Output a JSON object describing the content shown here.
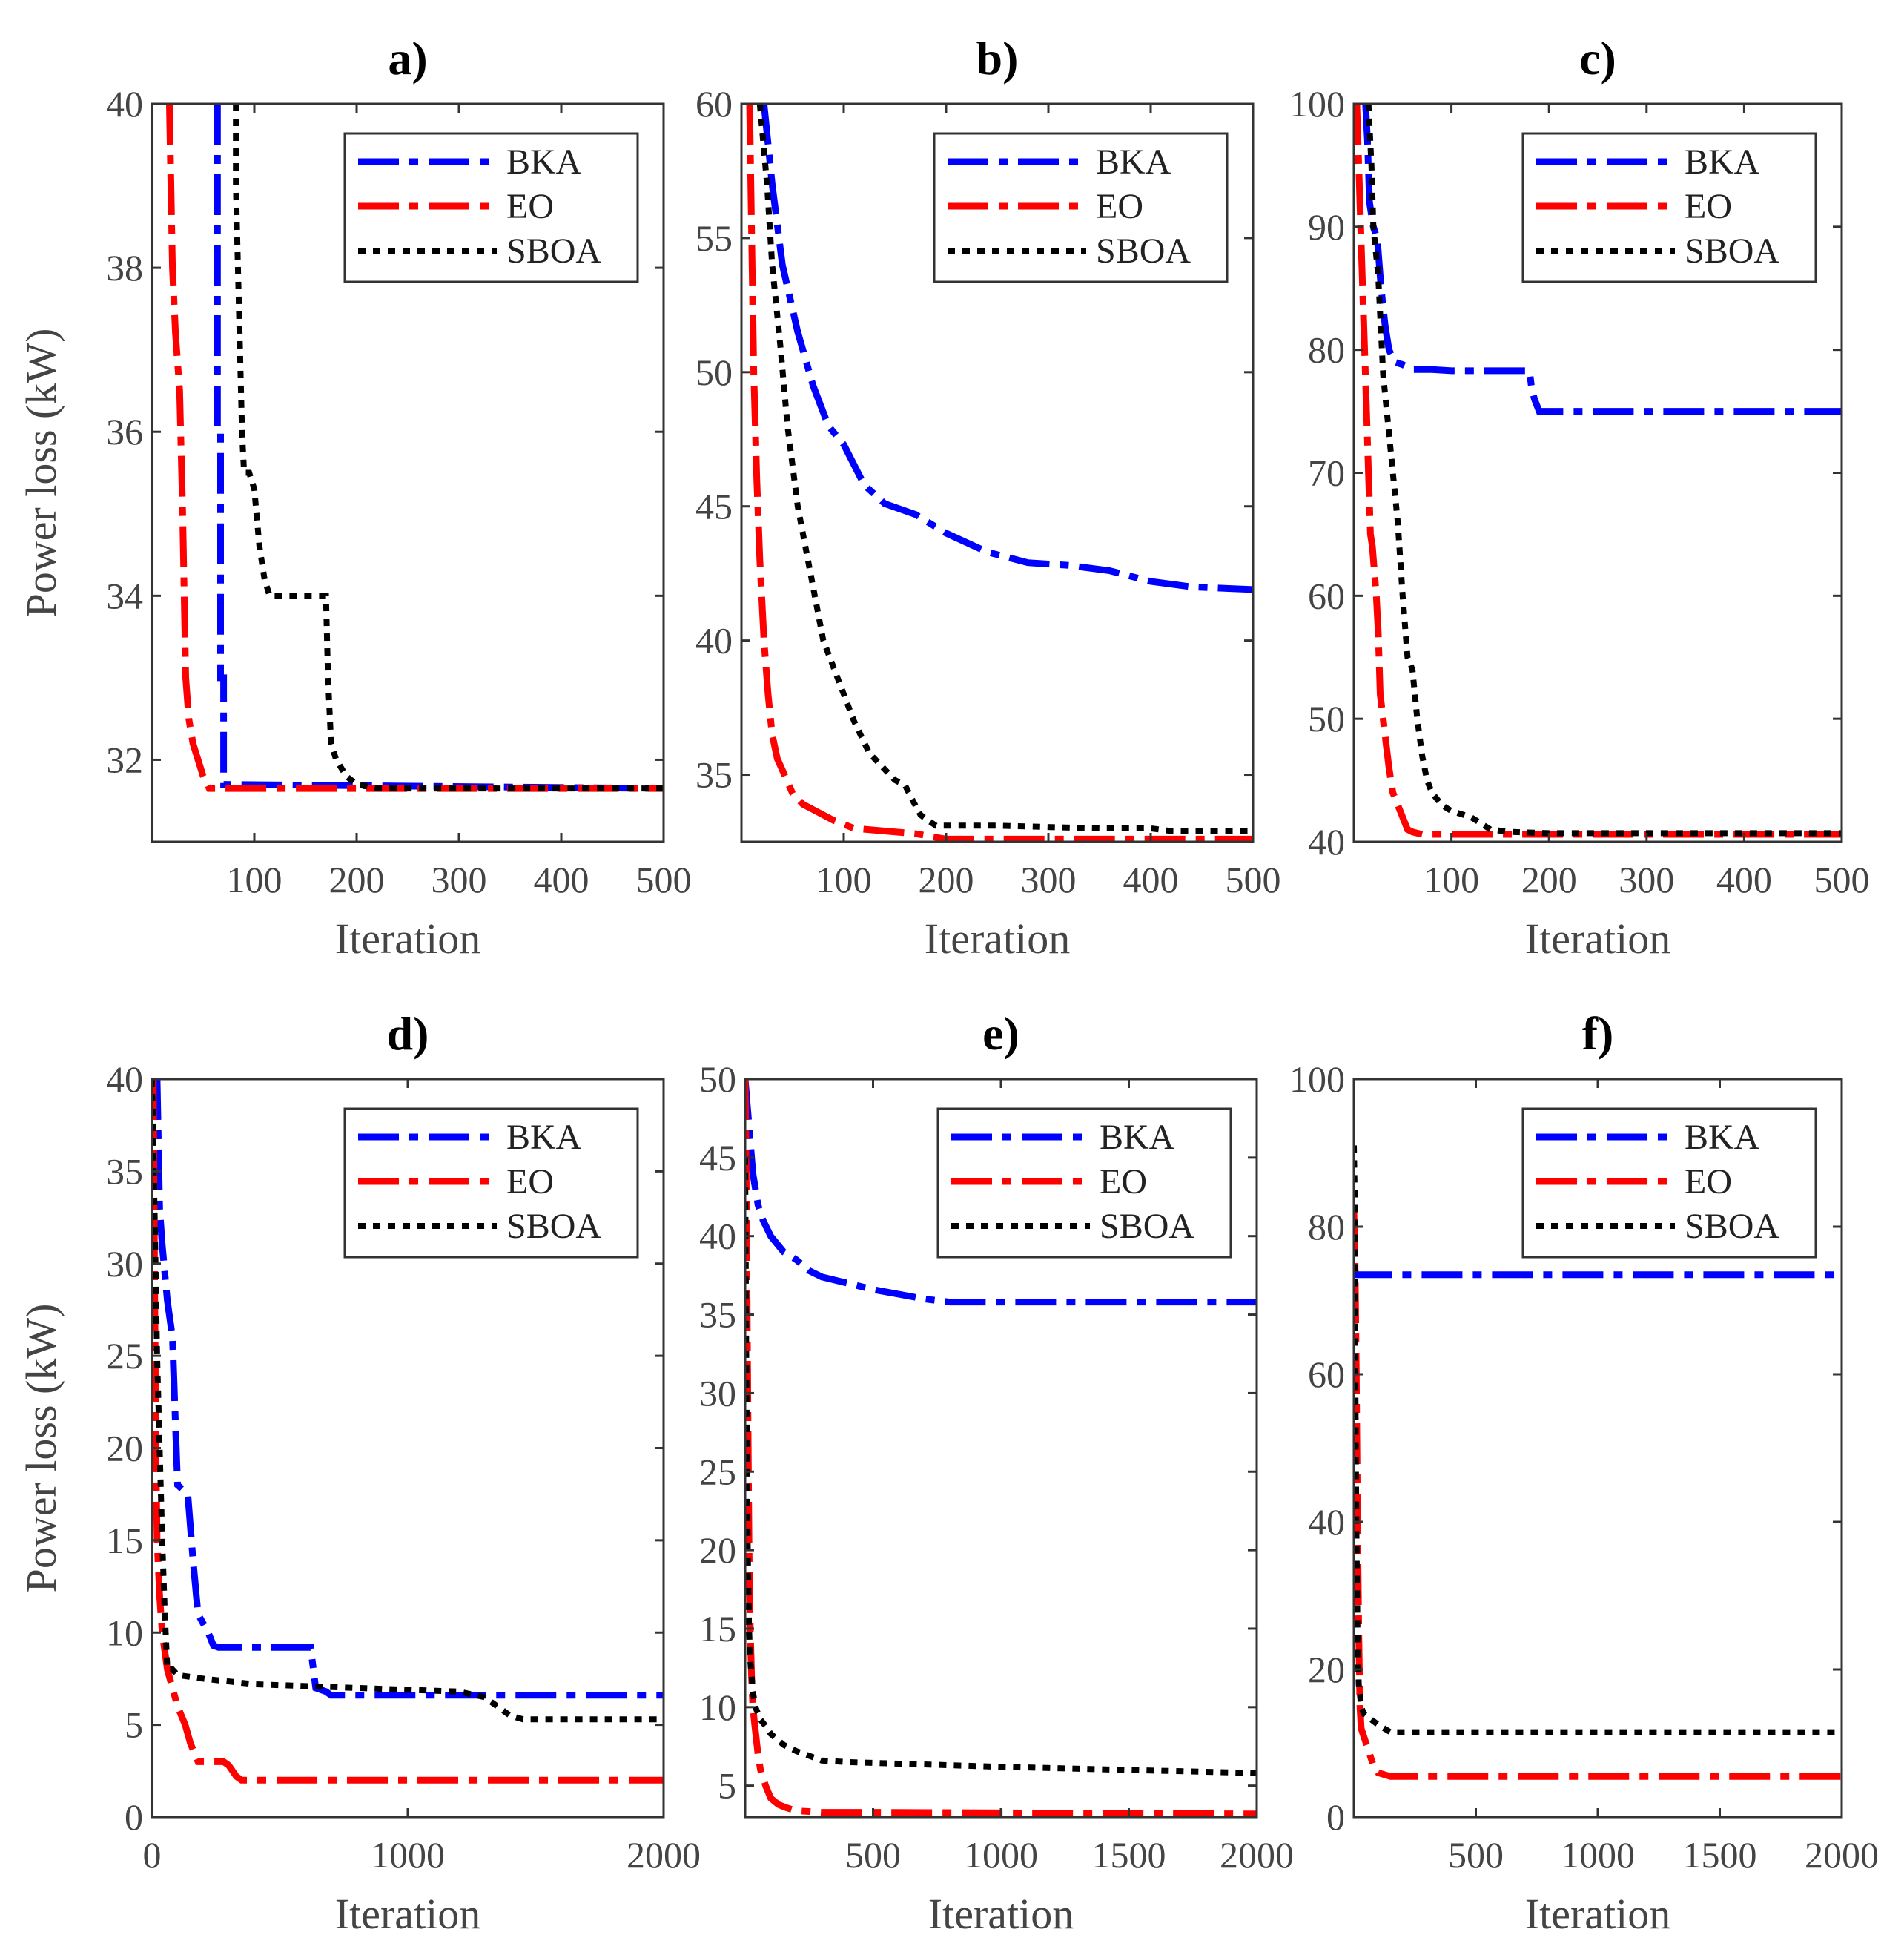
{
  "chart_data": [
    {
      "title": "a)",
      "type": "line",
      "xlabel": "Iteration",
      "ylabel": "Power loss (kW)",
      "xlim": [
        0,
        500
      ],
      "ylim": [
        31,
        40
      ],
      "xticks": [
        100,
        200,
        300,
        400,
        500
      ],
      "xtick_labels": [
        "100",
        "200",
        "300",
        "400",
        "500"
      ],
      "yticks": [
        32,
        34,
        36,
        38,
        40
      ],
      "ytick_labels": [
        "32",
        "34",
        "36",
        "38",
        "40"
      ],
      "legend": "top-right",
      "series": [
        {
          "name": "BKA",
          "color": "#0000ff",
          "style": "dashdot",
          "x": [
            64,
            64,
            67,
            67,
            70,
            70,
            500
          ],
          "y": [
            40,
            36,
            36,
            33,
            33,
            31.7,
            31.65
          ]
        },
        {
          "name": "EO",
          "color": "#ff0000",
          "style": "dashdot",
          "x": [
            17,
            20,
            23,
            27,
            30,
            33,
            36,
            40,
            45,
            50,
            56,
            500
          ],
          "y": [
            40,
            38,
            37.2,
            36.5,
            35,
            33,
            32.5,
            32.2,
            32,
            31.8,
            31.65,
            31.65
          ]
        },
        {
          "name": "SBOA",
          "color": "#000000",
          "style": "dotted",
          "x": [
            82,
            82,
            88,
            90,
            95,
            100,
            105,
            110,
            115,
            170,
            172,
            175,
            180,
            190,
            200,
            220,
            500
          ],
          "y": [
            40,
            39,
            36,
            35.5,
            35.5,
            35.3,
            34.6,
            34.2,
            34,
            34,
            33,
            32.2,
            32,
            31.8,
            31.7,
            31.65,
            31.65
          ]
        }
      ]
    },
    {
      "title": "b)",
      "type": "line",
      "xlabel": "Iteration",
      "ylabel": "",
      "xlim": [
        0,
        500
      ],
      "ylim": [
        32.5,
        60
      ],
      "xticks": [
        100,
        200,
        300,
        400,
        500
      ],
      "xtick_labels": [
        "100",
        "200",
        "300",
        "400",
        "500"
      ],
      "yticks": [
        35,
        40,
        45,
        50,
        55,
        60
      ],
      "ytick_labels": [
        "35",
        "40",
        "45",
        "50",
        "55",
        "60"
      ],
      "legend": "top-right",
      "series": [
        {
          "name": "BKA",
          "color": "#0000ff",
          "style": "dashdot",
          "x": [
            22,
            30,
            40,
            55,
            70,
            85,
            100,
            120,
            140,
            170,
            200,
            240,
            280,
            320,
            360,
            400,
            440,
            500
          ],
          "y": [
            60,
            57,
            54,
            51.5,
            49.5,
            48,
            47.3,
            45.8,
            45.1,
            44.7,
            44,
            43.3,
            42.9,
            42.8,
            42.6,
            42.2,
            42,
            41.9
          ]
        },
        {
          "name": "EO",
          "color": "#ff0000",
          "style": "dashdot",
          "x": [
            8,
            10,
            12,
            15,
            18,
            22,
            26,
            30,
            35,
            42,
            50,
            60,
            75,
            90,
            110,
            140,
            170,
            200,
            250,
            500
          ],
          "y": [
            60,
            55,
            50,
            46,
            43,
            40,
            38,
            36.5,
            35.6,
            35,
            34.3,
            33.9,
            33.6,
            33.3,
            33,
            32.9,
            32.8,
            32.6,
            32.6,
            32.6
          ]
        },
        {
          "name": "SBOA",
          "color": "#000000",
          "style": "dotted",
          "x": [
            18,
            25,
            30,
            38,
            45,
            55,
            65,
            80,
            95,
            110,
            125,
            140,
            150,
            160,
            168,
            175,
            190,
            250,
            350,
            400,
            420,
            500
          ],
          "y": [
            60,
            57,
            54,
            51,
            48,
            45,
            43,
            40,
            38.5,
            37,
            35.8,
            35.2,
            34.8,
            34.6,
            34,
            33.5,
            33.1,
            33.1,
            33,
            33,
            32.9,
            32.9
          ]
        }
      ]
    },
    {
      "title": "c)",
      "type": "line",
      "xlabel": "Iteration",
      "ylabel": "",
      "xlim": [
        0,
        500
      ],
      "ylim": [
        40,
        100
      ],
      "xticks": [
        100,
        200,
        300,
        400,
        500
      ],
      "xtick_labels": [
        "100",
        "200",
        "300",
        "400",
        "500"
      ],
      "yticks": [
        40,
        50,
        60,
        70,
        80,
        90,
        100
      ],
      "ytick_labels": [
        "40",
        "50",
        "60",
        "70",
        "80",
        "90",
        "100"
      ],
      "legend": "top-right",
      "series": [
        {
          "name": "BKA",
          "color": "#0000ff",
          "style": "dashdot",
          "x": [
            12,
            14,
            16,
            20,
            24,
            28,
            32,
            36,
            42,
            50,
            60,
            80,
            100,
            180,
            182,
            185,
            190,
            500
          ],
          "y": [
            100,
            97,
            92,
            90,
            89,
            85,
            82,
            80,
            79,
            78.8,
            78.4,
            78.4,
            78.3,
            78.3,
            77,
            76,
            75,
            75
          ]
        },
        {
          "name": "EO",
          "color": "#ff0000",
          "style": "dashdot",
          "x": [
            3,
            5,
            7,
            9,
            11,
            13,
            15,
            17,
            19,
            21,
            23,
            25,
            27,
            30,
            33,
            36,
            40,
            45,
            50,
            55,
            60,
            70,
            80,
            500
          ],
          "y": [
            100,
            95,
            90,
            85,
            80,
            75,
            70,
            65,
            64,
            62,
            60,
            57,
            52,
            50,
            48,
            46,
            44,
            43,
            42,
            41,
            40.8,
            40.6,
            40.6,
            40.6
          ]
        },
        {
          "name": "SBOA",
          "color": "#000000",
          "style": "dotted",
          "x": [
            15,
            18,
            20,
            25,
            30,
            35,
            40,
            45,
            50,
            55,
            60,
            65,
            70,
            75,
            80,
            90,
            100,
            120,
            140,
            160,
            200,
            500
          ],
          "y": [
            100,
            95,
            90,
            86,
            78,
            74,
            70,
            66,
            60,
            55,
            54,
            50,
            47,
            45,
            44,
            43,
            42.5,
            42,
            41,
            40.8,
            40.7,
            40.7
          ]
        }
      ]
    },
    {
      "title": "d)",
      "type": "line",
      "xlabel": "Iteration",
      "ylabel": "Power loss (kW)",
      "xlim": [
        0,
        2000
      ],
      "ylim": [
        0,
        40
      ],
      "xticks": [
        0,
        1000,
        2000
      ],
      "xtick_labels": [
        "0",
        "1000",
        "2000"
      ],
      "yticks": [
        0,
        5,
        10,
        15,
        20,
        25,
        30,
        35,
        40
      ],
      "ytick_labels": [
        "0",
        "5",
        "10",
        "15",
        "20",
        "25",
        "30",
        "35",
        "40"
      ],
      "legend": "top-right",
      "series": [
        {
          "name": "BKA",
          "color": "#0000ff",
          "style": "dashdot",
          "x": [
            20,
            30,
            40,
            60,
            80,
            100,
            140,
            160,
            180,
            220,
            240,
            260,
            300,
            620,
            640,
            680,
            700,
            1200,
            2000
          ],
          "y": [
            40,
            33,
            31,
            28,
            26,
            18,
            17.5,
            14,
            11,
            10,
            9.3,
            9.2,
            9.2,
            9.2,
            7,
            6.8,
            6.6,
            6.6,
            6.6
          ]
        },
        {
          "name": "EO",
          "color": "#ff0000",
          "style": "dashdot",
          "x": [
            5,
            10,
            15,
            20,
            30,
            40,
            60,
            80,
            100,
            130,
            150,
            180,
            220,
            280,
            300,
            330,
            350,
            2000
          ],
          "y": [
            40,
            30,
            20,
            15,
            12,
            10,
            8,
            7,
            6,
            5,
            4,
            3,
            3,
            3,
            2.8,
            2.2,
            2,
            2
          ]
        },
        {
          "name": "SBOA",
          "color": "#000000",
          "style": "dotted",
          "x": [
            0,
            10,
            20,
            30,
            40,
            50,
            60,
            80,
            100,
            200,
            400,
            600,
            800,
            1000,
            1200,
            1300,
            1400,
            1450,
            2000
          ],
          "y": [
            40,
            33,
            25,
            20,
            15,
            11,
            8,
            8,
            7.7,
            7.5,
            7.2,
            7.1,
            7,
            6.9,
            6.8,
            6.5,
            5.5,
            5.3,
            5.3
          ]
        }
      ]
    },
    {
      "title": "e)",
      "type": "line",
      "xlabel": "Iteration",
      "ylabel": "",
      "xlim": [
        0,
        2000
      ],
      "ylim": [
        3,
        50
      ],
      "xticks": [
        500,
        1000,
        1500,
        2000
      ],
      "xtick_labels": [
        "500",
        "1000",
        "1500",
        "2000"
      ],
      "yticks": [
        5,
        10,
        15,
        20,
        25,
        30,
        35,
        40,
        45,
        50
      ],
      "ytick_labels": [
        "5",
        "10",
        "15",
        "20",
        "25",
        "30",
        "35",
        "40",
        "45",
        "50"
      ],
      "legend": "top-right",
      "series": [
        {
          "name": "BKA",
          "color": "#0000ff",
          "style": "dashdot",
          "x": [
            0,
            15,
            30,
            50,
            70,
            100,
            150,
            200,
            250,
            300,
            400,
            500,
            600,
            700,
            800,
            1000,
            2000
          ],
          "y": [
            50,
            47,
            44,
            42,
            41,
            40,
            39,
            38.5,
            37.8,
            37.4,
            37,
            36.6,
            36.3,
            36,
            35.8,
            35.8,
            35.8
          ]
        },
        {
          "name": "EO",
          "color": "#ff0000",
          "style": "dashdot",
          "x": [
            0,
            5,
            10,
            15,
            20,
            25,
            30,
            40,
            50,
            60,
            80,
            100,
            130,
            160,
            200,
            300,
            500,
            2000
          ],
          "y": [
            50,
            42,
            30,
            20,
            15,
            12,
            10,
            8.5,
            7,
            6,
            5,
            4.2,
            3.8,
            3.6,
            3.4,
            3.3,
            3.3,
            3.2
          ]
        },
        {
          "name": "SBOA",
          "color": "#000000",
          "style": "dotted",
          "x": [
            0,
            5,
            10,
            15,
            20,
            30,
            40,
            50,
            60,
            80,
            100,
            150,
            200,
            250,
            300,
            400,
            600,
            800,
            1000,
            1500,
            2000
          ],
          "y": [
            45,
            30,
            20,
            15,
            13,
            11,
            10,
            9.6,
            9.2,
            8.8,
            8.3,
            7.6,
            7.2,
            6.9,
            6.6,
            6.5,
            6.4,
            6.3,
            6.2,
            6,
            5.8
          ]
        }
      ]
    },
    {
      "title": "f)",
      "type": "line",
      "xlabel": "Iteration",
      "ylabel": "",
      "xlim": [
        0,
        2000
      ],
      "ylim": [
        0,
        100
      ],
      "xticks": [
        500,
        1000,
        1500,
        2000
      ],
      "xtick_labels": [
        "500",
        "1000",
        "1500",
        "2000"
      ],
      "yticks": [
        0,
        20,
        40,
        60,
        80,
        100
      ],
      "ytick_labels": [
        "0",
        "20",
        "40",
        "60",
        "80",
        "100"
      ],
      "legend": "top-right",
      "series": [
        {
          "name": "BKA",
          "color": "#0000ff",
          "style": "dashdot",
          "x": [
            0,
            5,
            10,
            20,
            2000
          ],
          "y": [
            74,
            74,
            73.5,
            73.5,
            73.5
          ]
        },
        {
          "name": "EO",
          "color": "#ff0000",
          "style": "dashdot",
          "x": [
            0,
            5,
            10,
            15,
            20,
            25,
            30,
            40,
            50,
            60,
            70,
            80,
            100,
            150,
            200,
            500,
            2000
          ],
          "y": [
            82,
            75,
            60,
            40,
            25,
            15,
            12,
            11,
            10,
            9,
            8,
            7,
            6,
            5.5,
            5.5,
            5.5,
            5.5
          ]
        },
        {
          "name": "SBOA",
          "color": "#000000",
          "style": "dotted",
          "x": [
            0,
            3,
            6,
            10,
            15,
            20,
            30,
            40,
            60,
            80,
            100,
            150,
            200,
            2000
          ],
          "y": [
            91,
            85,
            60,
            40,
            25,
            18,
            15,
            14,
            13.5,
            13,
            12.5,
            11.5,
            11.5,
            11.5
          ]
        }
      ]
    }
  ]
}
